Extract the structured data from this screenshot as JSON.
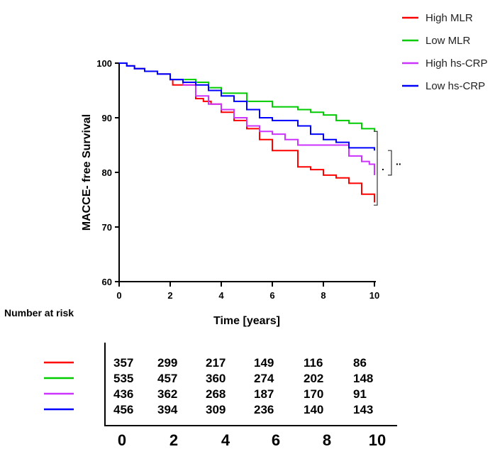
{
  "chart_data": {
    "type": "line",
    "ylabel": "MACCE- free Survival",
    "xlabel": "Time [years]",
    "xlim": [
      0,
      10
    ],
    "ylim": [
      60,
      100
    ],
    "x_ticks": [
      "0",
      "2",
      "4",
      "6",
      "8",
      "10"
    ],
    "y_ticks": [
      "60",
      "70",
      "80",
      "90",
      "100"
    ],
    "grid": false,
    "legend_position": "top-right",
    "series": [
      {
        "name": "High MLR",
        "color": "#ff0000",
        "points": [
          [
            0,
            100
          ],
          [
            0.3,
            99.5
          ],
          [
            0.6,
            99
          ],
          [
            1,
            98.5
          ],
          [
            1.5,
            98
          ],
          [
            2,
            97
          ],
          [
            2.1,
            96
          ],
          [
            2.5,
            96
          ],
          [
            3,
            93.5
          ],
          [
            3.3,
            93
          ],
          [
            3.6,
            92.5
          ],
          [
            4,
            91
          ],
          [
            4.5,
            89.5
          ],
          [
            5,
            88
          ],
          [
            5.5,
            86
          ],
          [
            6,
            84
          ],
          [
            6.5,
            84
          ],
          [
            7,
            81
          ],
          [
            7.5,
            80.5
          ],
          [
            8,
            79.5
          ],
          [
            8.5,
            79
          ],
          [
            9,
            78
          ],
          [
            9.5,
            76
          ],
          [
            10,
            74.5
          ]
        ]
      },
      {
        "name": "Low MLR",
        "color": "#00cc00",
        "points": [
          [
            0,
            100
          ],
          [
            0.3,
            99.5
          ],
          [
            0.6,
            99
          ],
          [
            1,
            98.5
          ],
          [
            1.5,
            98
          ],
          [
            2,
            97
          ],
          [
            3,
            96.5
          ],
          [
            3.5,
            95.5
          ],
          [
            4,
            94.5
          ],
          [
            5,
            93
          ],
          [
            6,
            92
          ],
          [
            7,
            91.5
          ],
          [
            7.5,
            91
          ],
          [
            8,
            90.5
          ],
          [
            8.5,
            89.5
          ],
          [
            9,
            89
          ],
          [
            9.5,
            88
          ],
          [
            10,
            87.5
          ]
        ]
      },
      {
        "name": "High hs-CRP",
        "color": "#cc33ff",
        "points": [
          [
            0,
            100
          ],
          [
            0.3,
            99.5
          ],
          [
            0.6,
            99
          ],
          [
            1,
            98.5
          ],
          [
            1.5,
            98
          ],
          [
            2,
            97
          ],
          [
            2.5,
            96
          ],
          [
            3,
            94
          ],
          [
            3.5,
            92.5
          ],
          [
            4,
            91.5
          ],
          [
            4.5,
            90
          ],
          [
            5,
            88.5
          ],
          [
            5.5,
            87.5
          ],
          [
            6,
            87
          ],
          [
            6.5,
            86
          ],
          [
            7,
            85
          ],
          [
            7.5,
            85
          ],
          [
            8,
            85
          ],
          [
            8.5,
            85
          ],
          [
            9,
            83
          ],
          [
            9.5,
            82
          ],
          [
            9.8,
            81.5
          ],
          [
            10,
            79.5
          ]
        ]
      },
      {
        "name": "Low hs-CRP",
        "color": "#0000ff",
        "points": [
          [
            0,
            100
          ],
          [
            0.3,
            99.5
          ],
          [
            0.6,
            99
          ],
          [
            1,
            98.5
          ],
          [
            1.5,
            98
          ],
          [
            2,
            97
          ],
          [
            2.5,
            96.5
          ],
          [
            3,
            96
          ],
          [
            3.5,
            95
          ],
          [
            4,
            94
          ],
          [
            4.5,
            93
          ],
          [
            5,
            91.5
          ],
          [
            5.5,
            90
          ],
          [
            6,
            89.5
          ],
          [
            6.5,
            89.5
          ],
          [
            7,
            88.5
          ],
          [
            7.5,
            87
          ],
          [
            8,
            86
          ],
          [
            8.5,
            85.5
          ],
          [
            9,
            84.5
          ],
          [
            10,
            84
          ]
        ]
      }
    ],
    "significance": [
      {
        "label": ".",
        "from": 87.5,
        "to": 74
      },
      {
        "label": "..",
        "from": 84,
        "to": 79.5
      }
    ]
  },
  "risk_table": {
    "title": "Number at risk",
    "time_labels": [
      "0",
      "2",
      "4",
      "6",
      "8",
      "10"
    ],
    "rows": [
      {
        "color": "#ff0000",
        "values": [
          "357",
          "299",
          "217",
          "149",
          "116",
          "86"
        ]
      },
      {
        "color": "#00cc00",
        "values": [
          "535",
          "457",
          "360",
          "274",
          "202",
          "148"
        ]
      },
      {
        "color": "#cc33ff",
        "values": [
          "436",
          "362",
          "268",
          "187",
          "170",
          "91"
        ]
      },
      {
        "color": "#0000ff",
        "values": [
          "456",
          "394",
          "309",
          "236",
          "140",
          "143"
        ]
      }
    ]
  }
}
